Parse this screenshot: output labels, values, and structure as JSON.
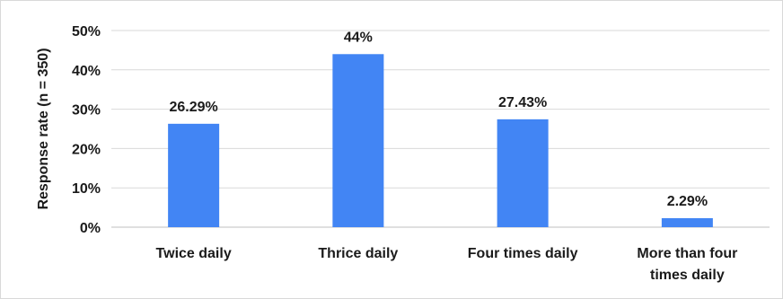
{
  "chart_data": {
    "type": "bar",
    "categories": [
      "Twice daily",
      "Thrice daily",
      "Four times daily",
      "More than four times daily"
    ],
    "category_lines": [
      [
        "Twice daily"
      ],
      [
        "Thrice daily"
      ],
      [
        "Four times daily"
      ],
      [
        "More than four",
        "times daily"
      ]
    ],
    "values": [
      26.29,
      44,
      27.43,
      2.29
    ],
    "data_labels": [
      "26.29%",
      "44%",
      "27.43%",
      "2.29%"
    ],
    "ylabel": "Response rate (n = 350)",
    "ylim": [
      0,
      50
    ],
    "yticks": [
      0,
      10,
      20,
      30,
      40,
      50
    ],
    "ytick_labels": [
      "0%",
      "10%",
      "20%",
      "30%",
      "40%",
      "50%"
    ],
    "grid": true,
    "legend": "none",
    "bar_color": "#4285F4"
  }
}
